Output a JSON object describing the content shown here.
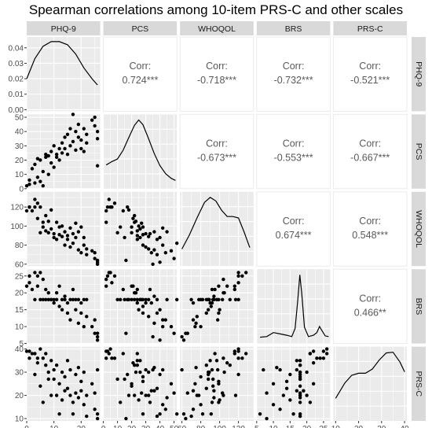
{
  "chart_data": {
    "type": "scatter",
    "title": "Spearman correlations among 10-item PRS-C and other scales",
    "variables": [
      "PHQ-9",
      "PCS",
      "WHOQOL",
      "BRS",
      "PRS-C"
    ],
    "ranges": {
      "PHQ-9": [
        0,
        27
      ],
      "PCS": [
        0,
        52
      ],
      "WHOQOL": [
        58,
        136
      ],
      "BRS": [
        5,
        27
      ],
      "PRS-C": [
        9,
        41
      ]
    },
    "ticks": {
      "PHQ-9": [
        0,
        10,
        20
      ],
      "PCS": [
        0,
        10,
        20,
        30,
        40,
        50
      ],
      "WHOQOL": [
        60,
        80,
        100,
        120
      ],
      "BRS": [
        5,
        10,
        15,
        20,
        25
      ],
      "PRS-C": [
        10,
        20,
        30,
        40
      ]
    },
    "density_axis": {
      "ticks": [
        0.0,
        0.01,
        0.02,
        0.03,
        0.04
      ],
      "labels": [
        "0.00",
        "0.01",
        "0.02",
        "0.03",
        "0.04"
      ],
      "range": [
        0,
        0.046
      ]
    },
    "correlation_label": "Corr:",
    "correlations": [
      {
        "row": "PHQ-9",
        "col": "PCS",
        "text": "0.724***"
      },
      {
        "row": "PHQ-9",
        "col": "WHOQOL",
        "text": "-0.718***"
      },
      {
        "row": "PHQ-9",
        "col": "BRS",
        "text": "-0.732***"
      },
      {
        "row": "PHQ-9",
        "col": "PRS-C",
        "text": "-0.521***"
      },
      {
        "row": "PCS",
        "col": "WHOQOL",
        "text": "-0.673***"
      },
      {
        "row": "PCS",
        "col": "BRS",
        "text": "-0.553***"
      },
      {
        "row": "PCS",
        "col": "PRS-C",
        "text": "-0.667***"
      },
      {
        "row": "WHOQOL",
        "col": "BRS",
        "text": "0.674***"
      },
      {
        "row": "WHOQOL",
        "col": "PRS-C",
        "text": "0.548***"
      },
      {
        "row": "BRS",
        "col": "PRS-C",
        "text": "0.466**"
      }
    ],
    "densities": {
      "PHQ-9": [
        [
          0,
          0.02
        ],
        [
          3,
          0.033
        ],
        [
          6,
          0.041
        ],
        [
          9,
          0.044
        ],
        [
          12,
          0.044
        ],
        [
          15,
          0.042
        ],
        [
          18,
          0.036
        ],
        [
          21,
          0.027
        ],
        [
          24,
          0.02
        ],
        [
          26,
          0.016
        ]
      ],
      "PCS": [
        [
          2,
          0.33
        ],
        [
          6,
          0.38
        ],
        [
          10,
          0.42
        ],
        [
          14,
          0.55
        ],
        [
          18,
          0.74
        ],
        [
          22,
          0.92
        ],
        [
          25,
          1.0
        ],
        [
          28,
          0.93
        ],
        [
          32,
          0.72
        ],
        [
          36,
          0.5
        ],
        [
          40,
          0.32
        ],
        [
          44,
          0.2
        ],
        [
          48,
          0.13
        ],
        [
          51,
          0.1
        ]
      ],
      "WHOQOL": [
        [
          60,
          0.22
        ],
        [
          68,
          0.42
        ],
        [
          76,
          0.66
        ],
        [
          84,
          0.88
        ],
        [
          90,
          0.95
        ],
        [
          96,
          0.9
        ],
        [
          102,
          0.77
        ],
        [
          108,
          0.68
        ],
        [
          114,
          0.68
        ],
        [
          120,
          0.66
        ],
        [
          126,
          0.46
        ],
        [
          132,
          0.24
        ]
      ],
      "BRS": [
        [
          6,
          0.07
        ],
        [
          8,
          0.08
        ],
        [
          10,
          0.14
        ],
        [
          12,
          0.12
        ],
        [
          14,
          0.1
        ],
        [
          15.5,
          0.08
        ],
        [
          16.5,
          0.2
        ],
        [
          17.3,
          0.62
        ],
        [
          17.9,
          1.0
        ],
        [
          18.5,
          0.72
        ],
        [
          19.3,
          0.22
        ],
        [
          20.5,
          0.08
        ],
        [
          22,
          0.1
        ],
        [
          23,
          0.14
        ],
        [
          23.8,
          0.23
        ],
        [
          24.5,
          0.17
        ],
        [
          25.5,
          0.09
        ],
        [
          26.5,
          0.08
        ]
      ],
      "PRS-C": [
        [
          10,
          0.3
        ],
        [
          14,
          0.52
        ],
        [
          17,
          0.63
        ],
        [
          20,
          0.66
        ],
        [
          23,
          0.66
        ],
        [
          26,
          0.72
        ],
        [
          29,
          0.85
        ],
        [
          32,
          0.95
        ],
        [
          35,
          0.96
        ],
        [
          38,
          0.82
        ],
        [
          40,
          0.68
        ]
      ]
    },
    "observations": [
      {
        "PHQ-9": 0,
        "PCS": 2,
        "WHOQOL": 116,
        "BRS": 22,
        "PRS-C": 39
      },
      {
        "PHQ-9": 1,
        "PCS": 3,
        "WHOQOL": 120,
        "BRS": 25,
        "PRS-C": 39
      },
      {
        "PHQ-9": 1,
        "PCS": 6,
        "WHOQOL": 120,
        "BRS": 23,
        "PRS-C": 36
      },
      {
        "PHQ-9": 2,
        "PCS": 14,
        "WHOQOL": 116,
        "BRS": 21,
        "PRS-C": 38
      },
      {
        "PHQ-9": 3,
        "PCS": 4,
        "WHOQOL": 128,
        "BRS": 26,
        "PRS-C": 38
      },
      {
        "PHQ-9": 3,
        "PCS": 17,
        "WHOQOL": 120,
        "BRS": 18,
        "PRS-C": 29
      },
      {
        "PHQ-9": 4,
        "PCS": 8,
        "WHOQOL": 124,
        "BRS": 25,
        "PRS-C": 36
      },
      {
        "PHQ-9": 4,
        "PCS": 21,
        "WHOQOL": 108,
        "BRS": 22,
        "PRS-C": 34
      },
      {
        "PHQ-9": 5,
        "PCS": 5,
        "WHOQOL": 120,
        "BRS": 26,
        "PRS-C": 40
      },
      {
        "PHQ-9": 5,
        "PCS": 20,
        "WHOQOL": 93,
        "BRS": 18,
        "PRS-C": 24
      },
      {
        "PHQ-9": 6,
        "PCS": 2,
        "WHOQOL": 104,
        "BRS": 24,
        "PRS-C": 36
      },
      {
        "PHQ-9": 6,
        "PCS": 12,
        "WHOQOL": 99,
        "BRS": 18,
        "PRS-C": 17
      },
      {
        "PHQ-9": 7,
        "PCS": 22,
        "WHOQOL": 111,
        "BRS": 18,
        "PRS-C": 33
      },
      {
        "PHQ-9": 7,
        "PCS": 24,
        "WHOQOL": 95,
        "BRS": 21,
        "PRS-C": 38
      },
      {
        "PHQ-9": 8,
        "PCS": 10,
        "WHOQOL": 93,
        "BRS": 18,
        "PRS-C": 27
      },
      {
        "PHQ-9": 8,
        "PCS": 23,
        "WHOQOL": 105,
        "BRS": 20,
        "PRS-C": 30
      },
      {
        "PHQ-9": 9,
        "PCS": 18,
        "WHOQOL": 117,
        "BRS": 18,
        "PRS-C": 20
      },
      {
        "PHQ-9": 9,
        "PCS": 26,
        "WHOQOL": 97,
        "BRS": 18,
        "PRS-C": 35
      },
      {
        "PHQ-9": 10,
        "PCS": 30,
        "WHOQOL": 92,
        "BRS": 17,
        "PRS-C": 31
      },
      {
        "PHQ-9": 10,
        "PCS": 15,
        "WHOQOL": 88,
        "BRS": 18,
        "PRS-C": 27
      },
      {
        "PHQ-9": 11,
        "PCS": 22,
        "WHOQOL": 104,
        "BRS": 20,
        "PRS-C": 20
      },
      {
        "PHQ-9": 11,
        "PCS": 24,
        "WHOQOL": 86,
        "BRS": 18,
        "PRS-C": 33
      },
      {
        "PHQ-9": 12,
        "PCS": 28,
        "WHOQOL": 91,
        "BRS": 16,
        "PRS-C": 12
      },
      {
        "PHQ-9": 12,
        "PCS": 20,
        "WHOQOL": 99,
        "BRS": 22,
        "PRS-C": 25
      },
      {
        "PHQ-9": 13,
        "PCS": 32,
        "WHOQOL": 89,
        "BRS": 18,
        "PRS-C": 30
      },
      {
        "PHQ-9": 13,
        "PCS": 25,
        "WHOQOL": 100,
        "BRS": 15,
        "PRS-C": 18
      },
      {
        "PHQ-9": 14,
        "PCS": 36,
        "WHOQOL": 94,
        "BRS": 19,
        "PRS-C": 22
      },
      {
        "PHQ-9": 14,
        "PCS": 28,
        "WHOQOL": 80,
        "BRS": 18,
        "PRS-C": 28
      },
      {
        "PHQ-9": 15,
        "PCS": 24,
        "WHOQOL": 90,
        "BRS": 17,
        "PRS-C": 35
      },
      {
        "PHQ-9": 15,
        "PCS": 38,
        "WHOQOL": 86,
        "BRS": 14,
        "PRS-C": 23
      },
      {
        "PHQ-9": 16,
        "PCS": 30,
        "WHOQOL": 78,
        "BRS": 18,
        "PRS-C": 20
      },
      {
        "PHQ-9": 16,
        "PCS": 42,
        "WHOQOL": 98,
        "BRS": 12,
        "PRS-C": 31
      },
      {
        "PHQ-9": 17,
        "PCS": 33,
        "WHOQOL": 92,
        "BRS": 21,
        "PRS-C": 17
      },
      {
        "PHQ-9": 17,
        "PCS": 52,
        "WHOQOL": 82,
        "BRS": 18,
        "PRS-C": 12
      },
      {
        "PHQ-9": 18,
        "PCS": 40,
        "WHOQOL": 88,
        "BRS": 15,
        "PRS-C": 29
      },
      {
        "PHQ-9": 18,
        "PCS": 27,
        "WHOQOL": 103,
        "BRS": 18,
        "PRS-C": 21
      },
      {
        "PHQ-9": 19,
        "PCS": 36,
        "WHOQOL": 75,
        "BRS": 11,
        "PRS-C": 32
      },
      {
        "PHQ-9": 19,
        "PCS": 45,
        "WHOQOL": 94,
        "BRS": 18,
        "PRS-C": 19
      },
      {
        "PHQ-9": 20,
        "PCS": 28,
        "WHOQOL": 99,
        "BRS": 14,
        "PRS-C": 26
      },
      {
        "PHQ-9": 20,
        "PCS": 34,
        "WHOQOL": 72,
        "BRS": 17,
        "PRS-C": 22
      },
      {
        "PHQ-9": 21,
        "PCS": 42,
        "WHOQOL": 80,
        "BRS": 10,
        "PRS-C": 16
      },
      {
        "PHQ-9": 21,
        "PCS": 26,
        "WHOQOL": 88,
        "BRS": 18,
        "PRS-C": 30
      },
      {
        "PHQ-9": 22,
        "PCS": 32,
        "WHOQOL": 76,
        "BRS": 13,
        "PRS-C": 20
      },
      {
        "PHQ-9": 22,
        "PCS": 38,
        "WHOQOL": 70,
        "BRS": 18,
        "PRS-C": 11
      },
      {
        "PHQ-9": 24,
        "PCS": 48,
        "WHOQOL": 74,
        "BRS": 10,
        "PRS-C": 25
      },
      {
        "PHQ-9": 25,
        "PCS": 50,
        "WHOQOL": 66,
        "BRS": 8,
        "PRS-C": 21
      },
      {
        "PHQ-9": 25,
        "PCS": 44,
        "WHOQOL": 72,
        "BRS": 12,
        "PRS-C": 14
      },
      {
        "PHQ-9": 26,
        "PCS": 40,
        "WHOQOL": 62,
        "BRS": 6,
        "PRS-C": 12
      },
      {
        "PHQ-9": 26,
        "PCS": 35,
        "WHOQOL": 60,
        "BRS": 7,
        "PRS-C": 31
      },
      {
        "PHQ-9": 26,
        "PCS": 16,
        "WHOQOL": 64,
        "BRS": 8,
        "PRS-C": 10
      }
    ],
    "grid": true,
    "legend": "none"
  }
}
